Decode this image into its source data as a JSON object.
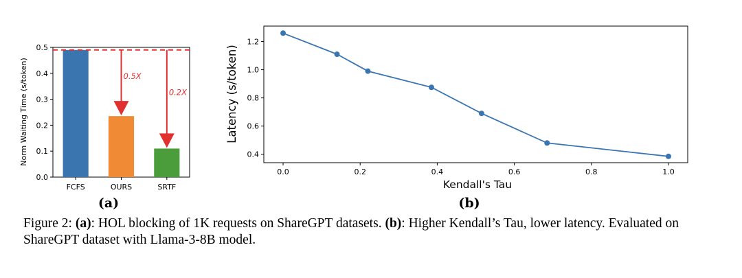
{
  "chart_data": [
    {
      "type": "bar",
      "categories": [
        "FCFS",
        "OURS",
        "SRTF"
      ],
      "values": [
        0.49,
        0.235,
        0.11
      ],
      "colors": [
        "#3a75b0",
        "#f08a35",
        "#4b9d3c"
      ],
      "ylabel": "Norm Waiting Time (s/token)",
      "ylim": [
        0.0,
        0.5
      ],
      "yticks": [
        "0.0",
        "0.1",
        "0.2",
        "0.3",
        "0.4",
        "0.5"
      ],
      "reference_line": {
        "value": 0.49,
        "color": "#e03030",
        "style": "dashed"
      },
      "annotations": [
        {
          "text": "0.5X",
          "category": "OURS",
          "color": "#e03030"
        },
        {
          "text": "0.2X",
          "category": "SRTF",
          "color": "#e03030"
        }
      ],
      "panel_label": "(a)"
    },
    {
      "type": "line",
      "x": [
        0.0,
        0.14,
        0.22,
        0.385,
        0.515,
        0.685,
        1.0
      ],
      "y": [
        1.26,
        1.11,
        0.99,
        0.875,
        0.69,
        0.48,
        0.385
      ],
      "color": "#3a75b0",
      "xlabel": "Kendall's Tau",
      "ylabel": "Latency (s/token)",
      "xlim": [
        -0.05,
        1.05
      ],
      "ylim": [
        0.34,
        1.31
      ],
      "xticks": [
        "0.0",
        "0.2",
        "0.4",
        "0.6",
        "0.8",
        "1.0"
      ],
      "yticks": [
        "0.4",
        "0.6",
        "0.8",
        "1.0",
        "1.2"
      ],
      "grid": false,
      "panel_label": "(b)"
    }
  ],
  "caption": {
    "prefix": "Figure 2: ",
    "a_label": "(a)",
    "a_text": ": HOL blocking of 1K requests on ShareGPT datasets. ",
    "b_label": "(b)",
    "b_text": ": Higher Kendall’s Tau, lower latency. Evaluated on ShareGPT dataset with Llama-3-8B model."
  }
}
